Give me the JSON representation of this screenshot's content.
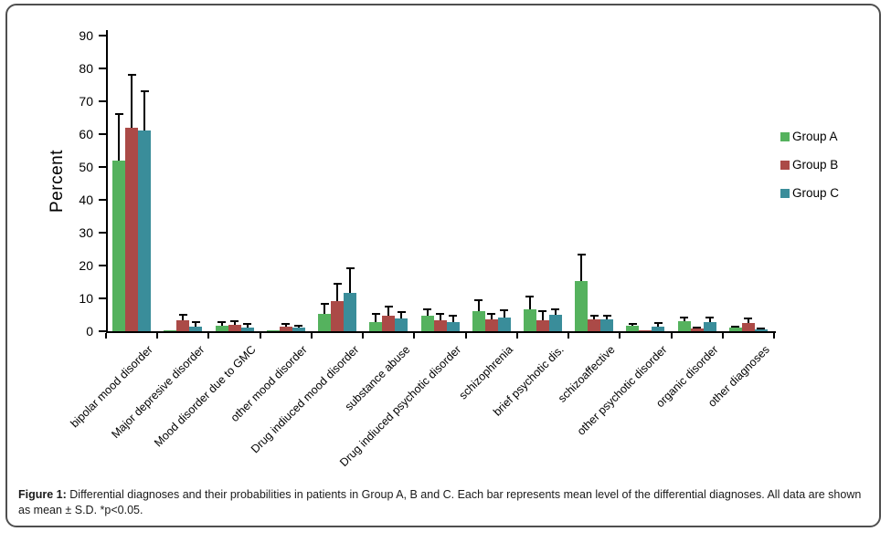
{
  "figure": {
    "caption_label": "Figure 1:",
    "caption_text": " Differential diagnoses and their probabilities in patients in Group A, B and C. Each bar represents mean level of the differential diagnoses. All data are shown as mean ± S.D.  *p<0.05."
  },
  "chart_data": {
    "type": "bar",
    "title": "",
    "xlabel": "",
    "ylabel": "Percent",
    "ylim": [
      0,
      90
    ],
    "ytick_step": 10,
    "grid": false,
    "legend_position": "right",
    "error_bars": "upper S.D. whiskers",
    "categories": [
      "bipolar mood disorder",
      "Major depresive disorder",
      "Mood disorder due to GMC",
      "other mood disorder",
      "Drug indiuced mood disorder",
      "substance abuse",
      "Drug indiuced psychotic disorder",
      "schizophrenia",
      "brief psychotic dis.",
      "schizoaffective",
      "other psychotic disorder",
      "organic disorder",
      "other diagnoses"
    ],
    "series": [
      {
        "name": "Group A",
        "color": "#55b25e",
        "values": [
          52,
          0.4,
          1.7,
          0.3,
          5.4,
          2.8,
          4.7,
          6.2,
          6.8,
          15.2,
          1.6,
          3.0,
          1.0
        ],
        "sd_upper": [
          14,
          0,
          1.1,
          0,
          3.0,
          2.5,
          2.0,
          3.3,
          3.8,
          8.0,
          0.7,
          1.2,
          0.5
        ]
      },
      {
        "name": "Group B",
        "color": "#ab4a47",
        "values": [
          62,
          3.4,
          2.0,
          1.5,
          9.2,
          4.7,
          3.2,
          3.6,
          3.4,
          3.7,
          0.4,
          0.8,
          2.6
        ],
        "sd_upper": [
          16,
          1.6,
          1.0,
          0.8,
          5.2,
          2.8,
          2.1,
          1.8,
          2.6,
          1.0,
          0,
          0.4,
          1.2
        ]
      },
      {
        "name": "Group C",
        "color": "#3a8d9a",
        "values": [
          61,
          1.5,
          1.1,
          1.0,
          11.7,
          3.9,
          2.9,
          4.2,
          4.9,
          3.5,
          1.3,
          2.7,
          0.5
        ],
        "sd_upper": [
          12,
          1.3,
          1.0,
          0.8,
          7.6,
          1.9,
          1.8,
          2.1,
          1.7,
          1.2,
          1.1,
          1.5,
          0.4
        ]
      }
    ]
  }
}
